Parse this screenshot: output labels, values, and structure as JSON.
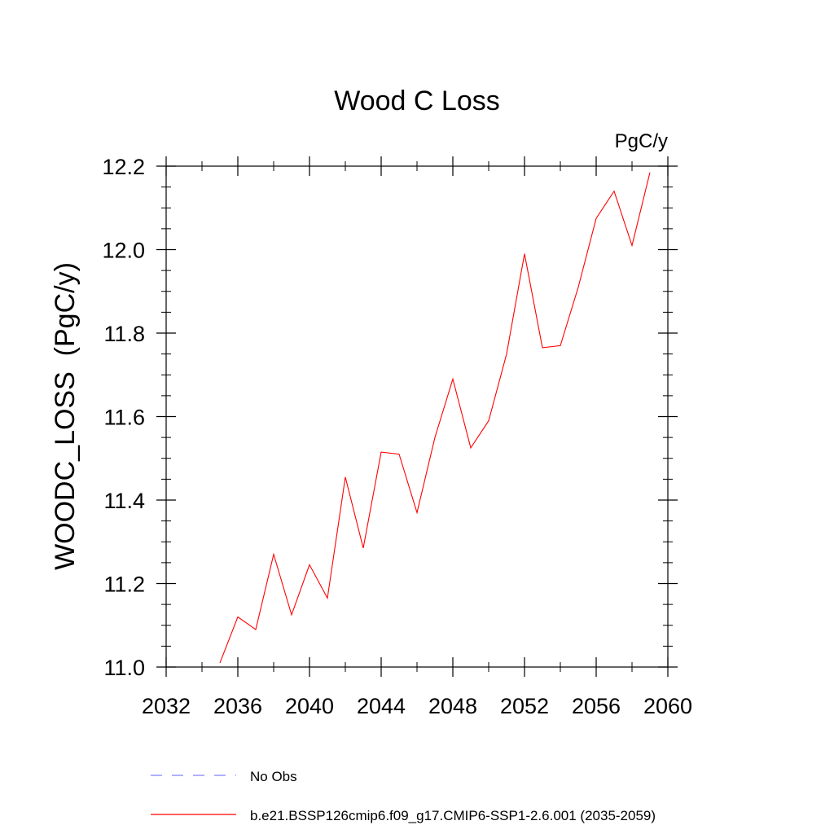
{
  "chart_data": {
    "type": "line",
    "title": "Wood C Loss",
    "units_label": "PgC/y",
    "ylabel": "WOODC_LOSS  (PgC/y)",
    "xlabel": "",
    "xlim": [
      2032,
      2060
    ],
    "ylim": [
      11.0,
      12.2
    ],
    "x_ticks": [
      2032,
      2036,
      2040,
      2044,
      2048,
      2052,
      2056,
      2060
    ],
    "x_tick_labels": [
      "2032",
      "2036",
      "2040",
      "2044",
      "2048",
      "2052",
      "2056",
      "2060"
    ],
    "y_ticks": [
      11.0,
      11.2,
      11.4,
      11.6,
      11.8,
      12.0,
      12.2
    ],
    "y_tick_labels": [
      "11.0",
      "11.2",
      "11.4",
      "11.6",
      "11.8",
      "12.0",
      "12.2"
    ],
    "grid": false,
    "series": [
      {
        "name": "b.e21.BSSP126cmip6.f09_g17.CMIP6-SSP1-2.6.001 (2035-2059)",
        "color": "#ff0000",
        "dash": "solid",
        "x": [
          2035,
          2036,
          2037,
          2038,
          2039,
          2040,
          2041,
          2042,
          2043,
          2044,
          2045,
          2046,
          2047,
          2048,
          2049,
          2050,
          2051,
          2052,
          2053,
          2054,
          2055,
          2056,
          2057,
          2058,
          2059
        ],
        "values": [
          11.01,
          11.12,
          11.09,
          11.27,
          11.125,
          11.245,
          11.165,
          11.455,
          11.285,
          11.515,
          11.51,
          11.37,
          11.55,
          11.69,
          11.525,
          11.59,
          11.75,
          11.99,
          11.765,
          11.77,
          11.91,
          12.075,
          12.14,
          12.01,
          12.185
        ]
      }
    ],
    "legend": {
      "placement": "bottom",
      "entries": [
        {
          "label": "No Obs",
          "color": "#8080ff",
          "dash": "dashed"
        },
        {
          "label": "b.e21.BSSP126cmip6.f09_g17.CMIP6-SSP1-2.6.001 (2035-2059)",
          "color": "#ff0000",
          "dash": "solid"
        }
      ]
    }
  }
}
